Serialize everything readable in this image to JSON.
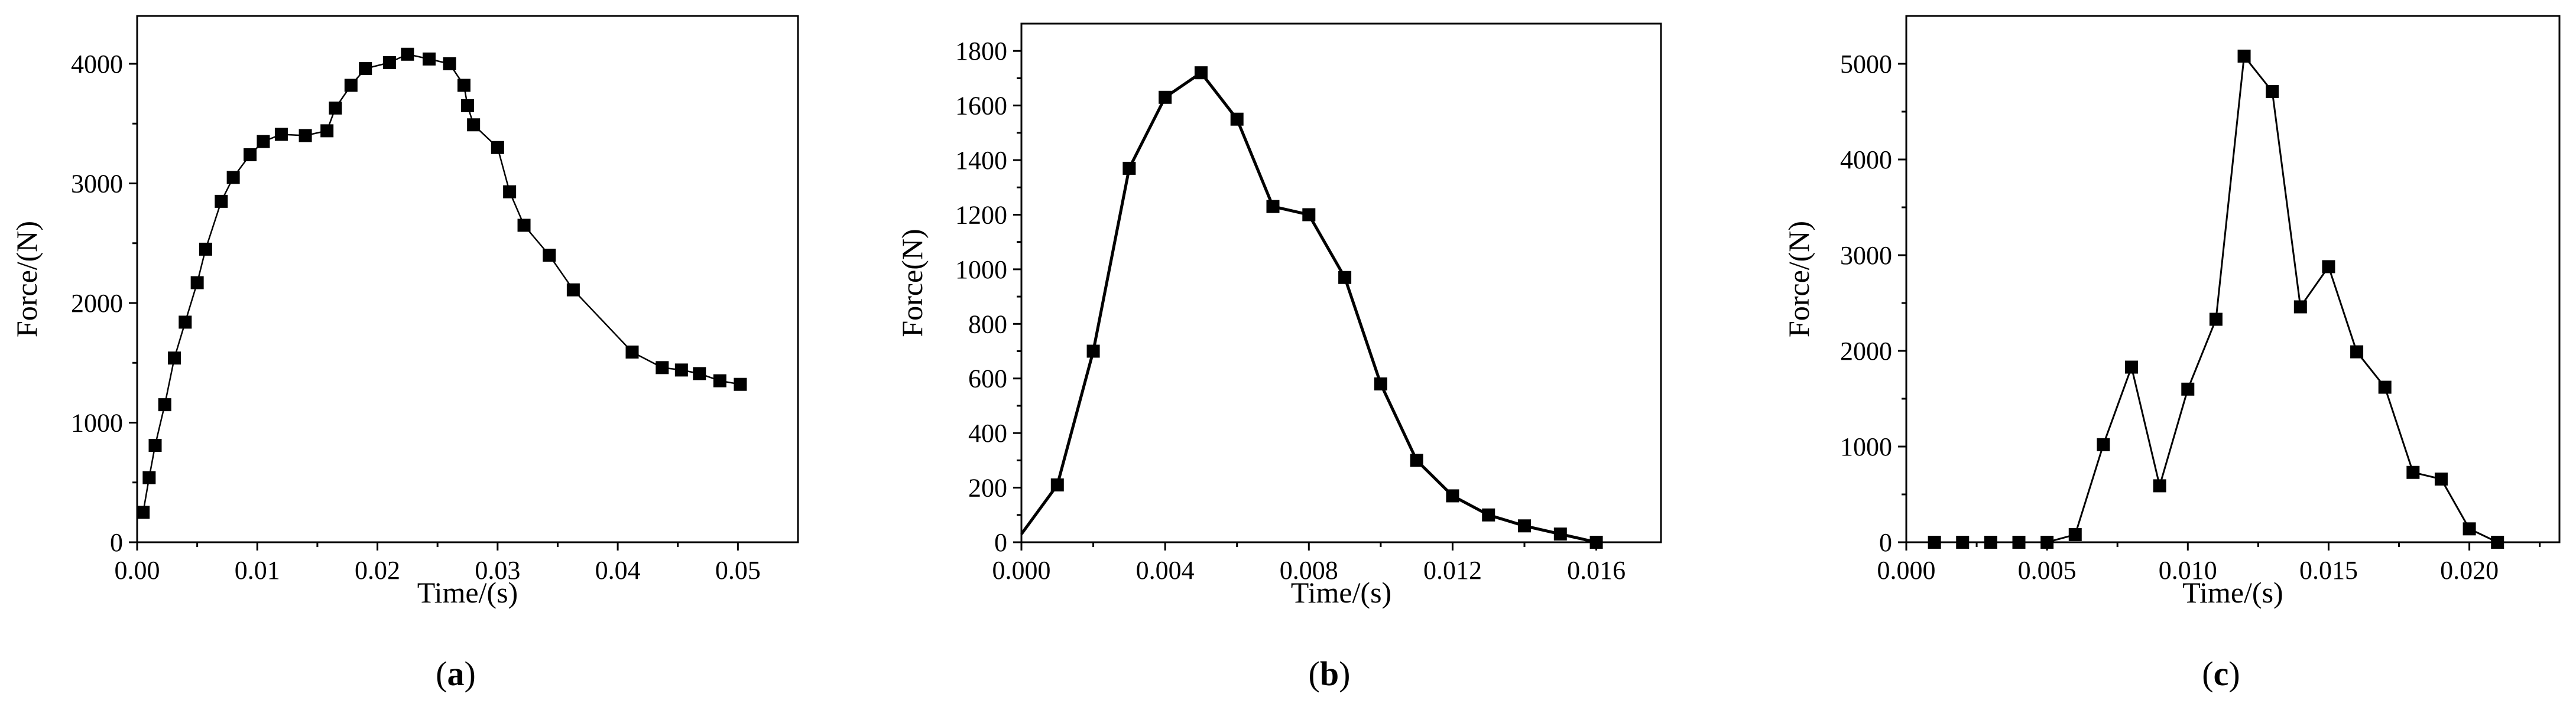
{
  "chart_data": [
    {
      "type": "line",
      "panel_label": "a",
      "xlabel": "Time/(s)",
      "ylabel": "Force/(N)",
      "xlim": [
        0,
        0.055
      ],
      "ylim": [
        0,
        4400
      ],
      "xticks": [
        0,
        0.01,
        0.02,
        0.03,
        0.04,
        0.05
      ],
      "xtick_labels": [
        "0.00",
        "0.01",
        "0.02",
        "0.03",
        "0.04",
        "0.05"
      ],
      "yticks": [
        0,
        1000,
        2000,
        3000,
        4000
      ],
      "ytick_labels": [
        "0",
        "1000",
        "2000",
        "3000",
        "4000"
      ],
      "grid": false,
      "series": [
        {
          "marker": "square",
          "x": [
            0.0005,
            0.001,
            0.0015,
            0.0023,
            0.0031,
            0.004,
            0.005,
            0.0057,
            0.007,
            0.008,
            0.0094,
            0.0105,
            0.012,
            0.014,
            0.0158,
            0.0165,
            0.0178,
            0.019,
            0.021,
            0.0225,
            0.0243,
            0.026,
            0.0272,
            0.0275,
            0.028,
            0.03,
            0.031,
            0.0322,
            0.0343,
            0.0363,
            0.0412,
            0.0437,
            0.0453,
            0.0468,
            0.0485,
            0.0502
          ],
          "y": [
            250,
            540,
            810,
            1150,
            1540,
            1840,
            2170,
            2450,
            2850,
            3050,
            3240,
            3350,
            3410,
            3400,
            3440,
            3630,
            3820,
            3960,
            4010,
            4080,
            4040,
            4000,
            3820,
            3650,
            3490,
            3300,
            2930,
            2650,
            2400,
            2110,
            1590,
            1460,
            1440,
            1410,
            1350,
            1320
          ]
        }
      ]
    },
    {
      "type": "line",
      "panel_label": "b",
      "xlabel": "Time/(s)",
      "ylabel": "Force(N)",
      "xlim": [
        0,
        0.0178
      ],
      "ylim": [
        0,
        1900
      ],
      "xticks": [
        0,
        0.004,
        0.008,
        0.012,
        0.016
      ],
      "xtick_labels": [
        "0.000",
        "0.004",
        "0.008",
        "0.012",
        "0.016"
      ],
      "yticks": [
        0,
        200,
        400,
        600,
        800,
        1000,
        1200,
        1400,
        1600,
        1800
      ],
      "ytick_labels": [
        "0",
        "200",
        "400",
        "600",
        "800",
        "1000",
        "1200",
        "1400",
        "1600",
        "1800"
      ],
      "grid": false,
      "series": [
        {
          "marker": "square",
          "x": [
            0,
            0.001,
            0.002,
            0.003,
            0.004,
            0.005,
            0.006,
            0.007,
            0.008,
            0.009,
            0.01,
            0.011,
            0.012,
            0.013,
            0.014,
            0.015,
            0.016
          ],
          "y": [
            30,
            210,
            700,
            1370,
            1630,
            1720,
            1550,
            1230,
            1200,
            970,
            580,
            300,
            170,
            100,
            60,
            30,
            0
          ],
          "first_point_marker": false
        }
      ]
    },
    {
      "type": "line",
      "panel_label": "c",
      "xlabel": "Time/(s)",
      "ylabel": "Force/(N)",
      "xlim": [
        0,
        0.0232
      ],
      "ylim": [
        0,
        5500
      ],
      "xticks": [
        0,
        0.005,
        0.01,
        0.015,
        0.02
      ],
      "xtick_labels": [
        "0.000",
        "0.005",
        "0.010",
        "0.015",
        "0.020"
      ],
      "yticks": [
        0,
        1000,
        2000,
        3000,
        4000,
        5000
      ],
      "ytick_labels": [
        "0",
        "1000",
        "2000",
        "3000",
        "4000",
        "5000"
      ],
      "grid": false,
      "series": [
        {
          "marker": "square",
          "x": [
            0.001,
            0.002,
            0.003,
            0.004,
            0.005,
            0.006,
            0.007,
            0.008,
            0.009,
            0.01,
            0.011,
            0.012,
            0.013,
            0.014,
            0.015,
            0.016,
            0.017,
            0.018,
            0.019,
            0.02,
            0.021
          ],
          "y": [
            0,
            0,
            0,
            0,
            0,
            80,
            1020,
            1830,
            590,
            1600,
            2330,
            5080,
            4710,
            2460,
            2880,
            1990,
            1620,
            730,
            660,
            140,
            0
          ]
        }
      ]
    }
  ]
}
